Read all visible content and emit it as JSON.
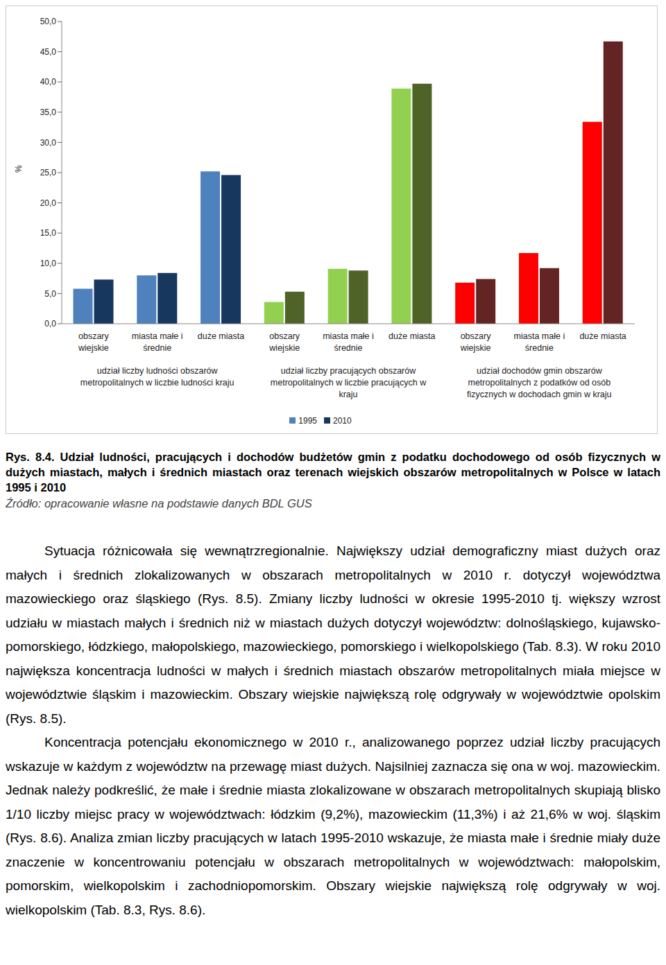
{
  "chart_data": {
    "type": "bar",
    "categories": [
      "obszary wiejskie",
      "miasta małe i średnie",
      "duże miasta",
      "obszary wiejskie",
      "miasta małe i średnie",
      "duże miasta",
      "obszary wiejskie",
      "miasta małe i średnie",
      "duże miasta"
    ],
    "group_labels": [
      "udział liczby ludności obszarów metropolitalnych w liczbie ludności kraju",
      "udział liczby pracujących obszarów metropolitalnych w liczbie pracujących w kraju",
      "udział dochodów gmin obszarów metropolitalnych z podatków od osób fizycznych w dochodach gmin w kraju"
    ],
    "y_label": "%",
    "series": [
      {
        "name": "1995",
        "color": "#4f81bd",
        "colors": [
          "#4f81bd",
          "#4f81bd",
          "#4f81bd",
          "#92d050",
          "#92d050",
          "#92d050",
          "#ff0000",
          "#ff0000",
          "#ff0000"
        ],
        "values": [
          5.8,
          8.0,
          25.2,
          3.6,
          9.1,
          38.9,
          6.8,
          11.7,
          33.4
        ]
      },
      {
        "name": "2010",
        "color": "#17375e",
        "colors": [
          "#17375e",
          "#17375e",
          "#17375e",
          "#4f6228",
          "#4f6228",
          "#4f6228",
          "#632523",
          "#632523",
          "#632523"
        ],
        "values": [
          7.3,
          8.4,
          24.6,
          5.3,
          8.8,
          39.7,
          7.4,
          9.2,
          46.7
        ]
      }
    ],
    "ylim": [
      0,
      50
    ],
    "yticks": [
      {
        "value": 0,
        "label": "0,0"
      },
      {
        "value": 5,
        "label": "5,0"
      },
      {
        "value": 10,
        "label": "10,0"
      },
      {
        "value": 15,
        "label": "15,0"
      },
      {
        "value": 20,
        "label": "20,0"
      },
      {
        "value": 25,
        "label": "25,0"
      },
      {
        "value": 30,
        "label": "30,0"
      },
      {
        "value": 35,
        "label": "35,0"
      },
      {
        "value": 40,
        "label": "40,0"
      },
      {
        "value": 45,
        "label": "45,0"
      },
      {
        "value": 50,
        "label": "50,0"
      }
    ],
    "grid": false,
    "legend": "bottom"
  },
  "caption": "Rys. 8.4. Udział ludności, pracujących i dochodów budżetów gmin z podatku dochodowego od osób fizycznych w dużych miastach, małych i średnich miastach oraz terenach wiejskich obszarów metropolitalnych w Polsce w latach 1995 i 2010",
  "source": "Źródło: opracowanie własne na podstawie danych BDL GUS",
  "paragraphs": [
    "Sytuacja różnicowała się wewnątrzregionalnie. Największy udział demograficzny miast dużych oraz małych i średnich zlokalizowanych w obszarach metropolitalnych w 2010 r. dotyczył województwa mazowieckiego oraz śląskiego (Rys. 8.5). Zmiany liczby ludności w okresie 1995-2010 tj. większy wzrost udziału w miastach małych i średnich niż w miastach dużych dotyczył województw: dolnośląskiego, kujawsko-pomorskiego, łódzkiego, małopolskiego, mazowieckiego, pomorskiego i wielkopolskiego (Tab. 8.3). W roku 2010 największa koncentracja ludności w małych i średnich miastach obszarów metropolitalnych miała miejsce w województwie śląskim i mazowieckim. Obszary wiejskie największą rolę odgrywały w województwie opolskim (Rys. 8.5).",
    "Koncentracja potencjału ekonomicznego w 2010 r., analizowanego poprzez udział liczby pracujących wskazuje w każdym z województw na przewagę miast dużych. Najsilniej zaznacza się ona w woj. mazowieckim. Jednak należy podkreślić, że małe i średnie miasta zlokalizowane w obszarach metropolitalnych skupiają blisko 1/10 liczby miejsc pracy w województwach: łódzkim (9,2%), mazowieckim (11,3%) i aż 21,6% w woj. śląskim (Rys. 8.6). Analiza zmian liczby pracujących w latach 1995-2010 wskazuje, że miasta małe i średnie miały duże znaczenie w koncentrowaniu potencjału w obszarach metropolitalnych w województwach: małopolskim, pomorskim, wielkopolskim i zachodniopomorskim. Obszary wiejskie największą rolę odgrywały w woj. wielkopolskim (Tab. 8.3, Rys. 8.6)."
  ]
}
